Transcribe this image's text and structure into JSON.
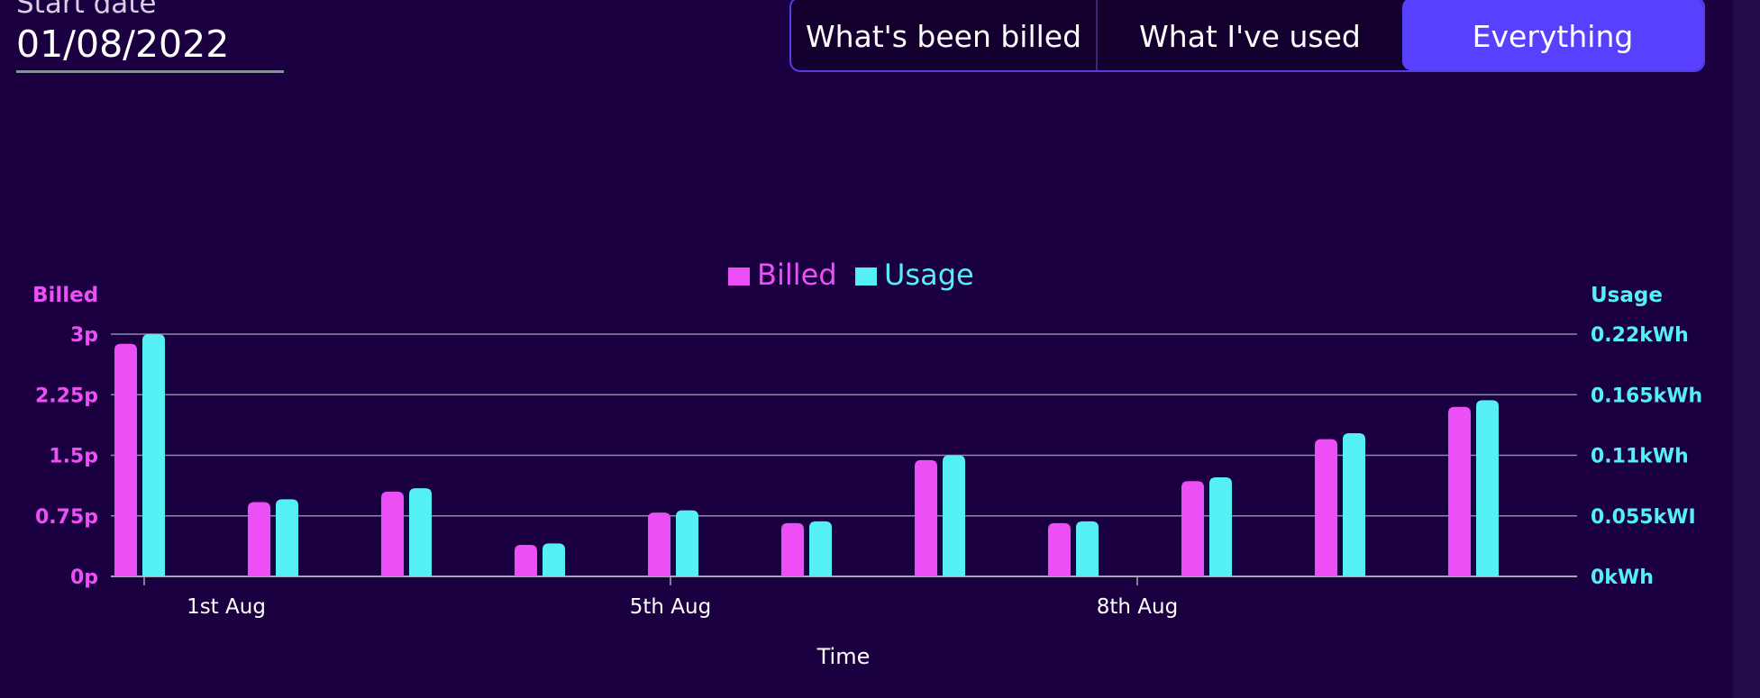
{
  "start_date": {
    "label": "Start date",
    "value": "01/08/2022"
  },
  "view_toggle": {
    "options": [
      "What's been billed",
      "What I've used",
      "Everything"
    ],
    "selected": "Everything"
  },
  "colors": {
    "billed": "#ec4ff5",
    "usage": "#55f0f5",
    "accent": "#5840ff",
    "background": "#1b0041"
  },
  "chart_data": {
    "type": "bar",
    "legend": [
      "Billed",
      "Usage"
    ],
    "legend_position": "top-center",
    "xlabel": "Time",
    "x_tick_labels": [
      {
        "label": "1st Aug",
        "index": 0.6
      },
      {
        "label": "5th Aug",
        "index": 4.0
      },
      {
        "label": "8th Aug",
        "index": 7.5
      }
    ],
    "y_left": {
      "title": "Billed",
      "ticks": [
        "0p",
        "0.75p",
        "1.5p",
        "2.25p",
        "3p"
      ],
      "range": [
        0,
        3
      ]
    },
    "y_right": {
      "title": "Usage",
      "ticks": [
        "0kWh",
        "0.055kWI",
        "0.11kWh",
        "0.165kWh",
        "0.22kWh"
      ],
      "range": [
        0,
        0.22
      ]
    },
    "grid": true,
    "series": [
      {
        "name": "Billed",
        "axis": "left",
        "values": [
          2.88,
          0.92,
          1.05,
          0.39,
          0.79,
          0.66,
          1.44,
          0.66,
          1.18,
          1.7,
          2.1
        ]
      },
      {
        "name": "Usage",
        "axis": "right",
        "values": [
          0.22,
          0.07,
          0.08,
          0.03,
          0.06,
          0.05,
          0.11,
          0.05,
          0.09,
          0.13,
          0.16
        ]
      }
    ]
  }
}
